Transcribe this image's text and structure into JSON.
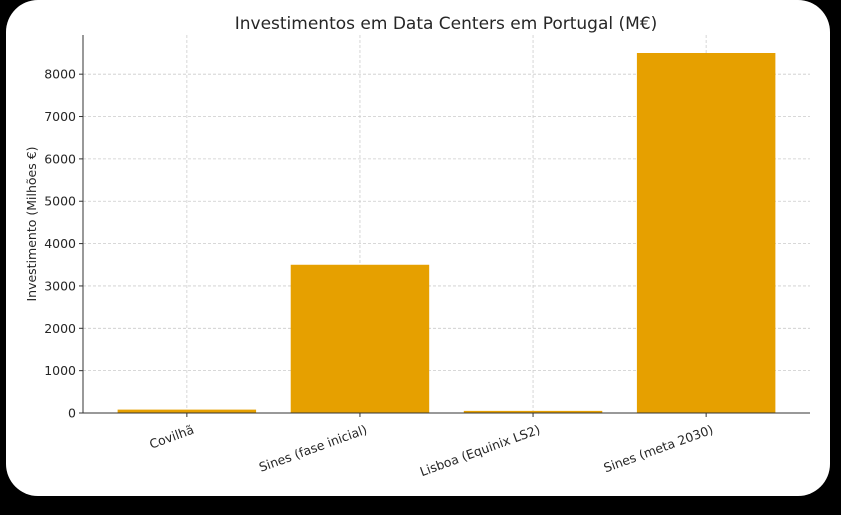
{
  "chart_data": {
    "type": "bar",
    "title": "Investimentos em Data Centers em Portugal (M€)",
    "xlabel": "",
    "ylabel": "Investimento (Milhões €)",
    "categories": [
      "Covilhã",
      "Sines (fase inicial)",
      "Lisboa (Equinix LS2)",
      "Sines (meta 2030)"
    ],
    "values": [
      80,
      3500,
      50,
      8500
    ],
    "ylim": [
      0,
      8925
    ],
    "yticks": [
      0,
      1000,
      2000,
      3000,
      4000,
      5000,
      6000,
      7000,
      8000
    ],
    "grid": true,
    "bar_color": "#E6A000"
  }
}
